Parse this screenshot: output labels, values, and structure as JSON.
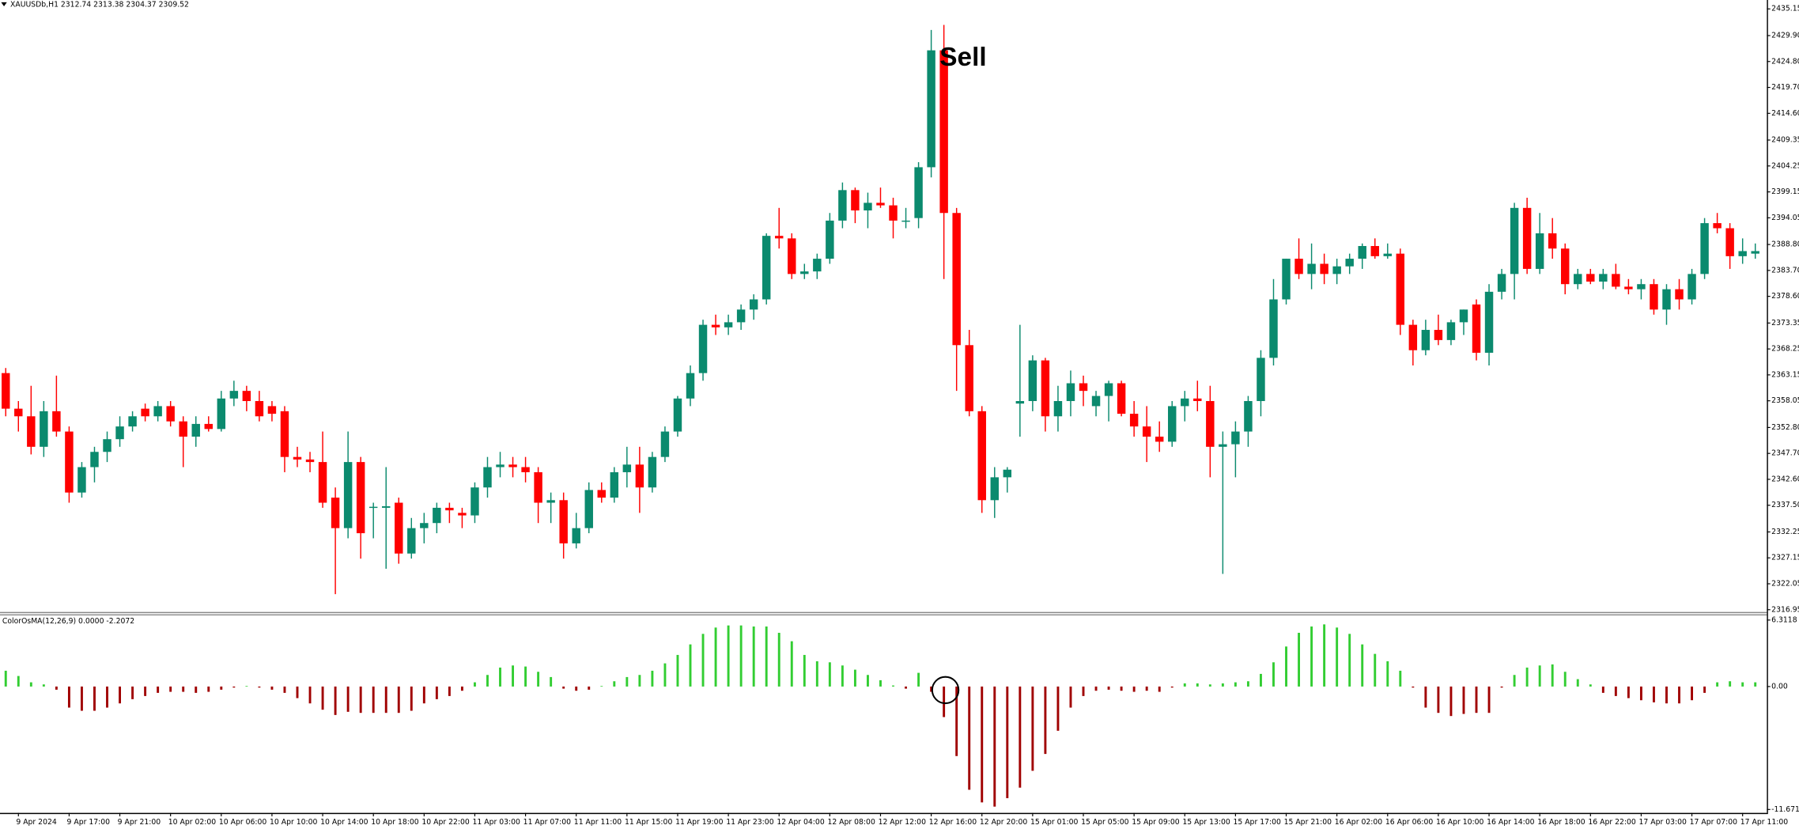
{
  "chart_data": [
    {
      "type": "candlestick",
      "title": "XAUUSDb,H1",
      "subtitle": "2312.74 2313.38 2304.37 2309.52",
      "annotation": "Sell",
      "categories": [
        null,
        "9 Apr 2024",
        null,
        null,
        null,
        "9 Apr 17:00",
        null,
        null,
        null,
        "9 Apr 21:00",
        null,
        null,
        null,
        "10 Apr 02:00",
        null,
        null,
        null,
        "10 Apr 06:00",
        null,
        null,
        null,
        "10 Apr 10:00",
        null,
        null,
        null,
        "10 Apr 14:00",
        null,
        null,
        null,
        "10 Apr 18:00",
        null,
        null,
        null,
        "10 Apr 22:00",
        null,
        null,
        null,
        "11 Apr 03:00",
        null,
        null,
        null,
        "11 Apr 07:00",
        null,
        null,
        null,
        "11 Apr 11:00",
        null,
        null,
        null,
        "11 Apr 15:00",
        null,
        null,
        null,
        "11 Apr 19:00",
        null,
        null,
        null,
        "11 Apr 23:00",
        null,
        null,
        null,
        "12 Apr 04:00",
        null,
        null,
        null,
        "12 Apr 08:00",
        null,
        null,
        null,
        "12 Apr 12:00",
        null,
        null,
        null,
        "12 Apr 16:00",
        null,
        null,
        null,
        "12 Apr 20:00",
        null,
        null,
        null,
        "15 Apr 01:00",
        null,
        null,
        null,
        "15 Apr 05:00",
        null,
        null,
        null,
        "15 Apr 09:00",
        null,
        null,
        null,
        "15 Apr 13:00",
        null,
        null,
        null,
        "15 Apr 17:00",
        null,
        null,
        null,
        "15 Apr 21:00",
        null,
        null,
        null,
        "16 Apr 02:00",
        null,
        null,
        null,
        "16 Apr 06:00",
        null,
        null,
        null,
        "16 Apr 10:00",
        null,
        null,
        null,
        "16 Apr 14:00",
        null,
        null,
        null,
        "16 Apr 18:00",
        null,
        null,
        null,
        "16 Apr 22:00",
        null,
        null,
        null,
        "17 Apr 03:00",
        null,
        null,
        null,
        "17 Apr 07:00",
        null,
        null,
        null,
        "17 Apr 11:00",
        null
      ],
      "open": [
        2363.5,
        2356.5,
        2355,
        2349,
        2356,
        2352,
        2340,
        2345,
        2348,
        2350.5,
        2353,
        2356.5,
        2355,
        2357,
        2354,
        2351,
        2353.5,
        2352.5,
        2358.5,
        2360,
        2358,
        2357,
        2356,
        2347,
        2346.5,
        2346,
        2339,
        2333,
        2346,
        2337,
        2337,
        2338,
        2328,
        2333,
        2334,
        2337,
        2336,
        2335.5,
        2341,
        2345,
        2345.5,
        2345,
        2344,
        2338,
        2338.5,
        2330,
        2333,
        2340.5,
        2339,
        2344,
        2345.5,
        2341,
        2347,
        2352,
        2358.5,
        2363.5,
        2373,
        2372.5,
        2373.5,
        2376,
        2378,
        2390.5,
        2390,
        2383,
        2383.5,
        2386,
        2393.5,
        2399.5,
        2395.5,
        2397,
        2396.5,
        2393.5,
        2394,
        2404,
        2427,
        2395,
        2369,
        2356,
        2338.5,
        2343,
        2357.5,
        2358,
        2366,
        2355,
        2358,
        2361.5,
        2357,
        2359,
        2361.5,
        2355.5,
        2353,
        2351,
        2350,
        2357,
        2358.5,
        2358,
        2349,
        2349.5,
        2352,
        2358,
        2366.5,
        2378,
        2386,
        2383,
        2385,
        2383,
        2384.5,
        2386,
        2388.5,
        2386.5,
        2387,
        2373,
        2368,
        2372,
        2370,
        2373.5,
        2377,
        2367.5,
        2379.5,
        2383,
        2396,
        2384,
        2391,
        2388,
        2381,
        2383,
        2381.5,
        2383,
        2380.5,
        2380,
        2381,
        2376,
        2380,
        2378,
        2383,
        2393,
        2392,
        2386.5,
        2387
      ],
      "high": [
        2364.5,
        2358,
        2361,
        2358,
        2363,
        2353,
        2346,
        2349,
        2352,
        2355,
        2356,
        2357.5,
        2358,
        2358,
        2355,
        2355,
        2355,
        2360,
        2362,
        2361,
        2360,
        2358,
        2357,
        2349,
        2348,
        2352,
        2341,
        2352,
        2347,
        2338,
        2345,
        2339,
        2335,
        2336,
        2338,
        2338,
        2337,
        2342,
        2347,
        2348,
        2347,
        2347,
        2345,
        2340,
        2340,
        2336,
        2342,
        2342,
        2345,
        2349,
        2349,
        2348,
        2353,
        2359,
        2365,
        2374,
        2375,
        2375,
        2377,
        2379,
        2391,
        2396,
        2391,
        2385,
        2387,
        2395,
        2401,
        2400,
        2399,
        2400,
        2398,
        2396,
        2405,
        2431,
        2432,
        2396,
        2372,
        2357,
        2345,
        2345,
        2373,
        2367,
        2366.5,
        2361,
        2364,
        2363,
        2360,
        2362,
        2362,
        2358,
        2357,
        2354,
        2358,
        2360,
        2362,
        2361,
        2352,
        2354,
        2359,
        2368,
        2382,
        2386,
        2390,
        2389,
        2387,
        2386,
        2387,
        2389,
        2390,
        2389,
        2388,
        2374,
        2374,
        2375,
        2374,
        2376,
        2378,
        2381,
        2384,
        2397,
        2398,
        2395,
        2394,
        2389,
        2384,
        2384,
        2384,
        2385,
        2382,
        2382,
        2382,
        2381,
        2382,
        2384,
        2394,
        2395,
        2393,
        2390,
        2389
      ],
      "low": [
        2355,
        2352,
        2347.5,
        2347,
        2351,
        2338,
        2339,
        2342,
        2346,
        2349,
        2352,
        2354,
        2354,
        2353,
        2345,
        2349,
        2352,
        2352,
        2357,
        2356,
        2354,
        2354,
        2344,
        2345,
        2344,
        2337,
        2320,
        2331,
        2327,
        2331,
        2325,
        2326,
        2327,
        2330,
        2332,
        2334,
        2333,
        2334,
        2339,
        2343,
        2343,
        2342,
        2334,
        2334,
        2327,
        2329,
        2332,
        2338,
        2338,
        2341,
        2336,
        2340,
        2346,
        2351,
        2357,
        2362,
        2371,
        2371,
        2372,
        2374,
        2377,
        2388,
        2382,
        2382,
        2382,
        2385,
        2392,
        2393,
        2392,
        2396,
        2390,
        2392,
        2392,
        2402,
        2382,
        2360,
        2355,
        2336,
        2335,
        2340,
        2351,
        2356,
        2352,
        2352,
        2355,
        2357,
        2355,
        2354,
        2355,
        2351,
        2346,
        2348,
        2349,
        2354,
        2356,
        2343,
        2324,
        2343,
        2349,
        2355,
        2365,
        2377,
        2382,
        2380,
        2381,
        2381,
        2383,
        2384,
        2386,
        2386,
        2371,
        2365,
        2367,
        2369,
        2369,
        2371,
        2366,
        2365,
        2378,
        2378,
        2383,
        2383,
        2386,
        2379,
        2380,
        2381,
        2380,
        2380,
        2379,
        2378,
        2375,
        2373,
        2376,
        2377,
        2382,
        2391,
        2384,
        2385,
        2386
      ],
      "close": [
        2356.5,
        2355,
        2349,
        2356,
        2352,
        2340,
        2345,
        2348,
        2350.5,
        2353,
        2355,
        2355,
        2357,
        2354,
        2351,
        2353.5,
        2352.5,
        2358.5,
        2360,
        2358,
        2355,
        2355.5,
        2347,
        2346.5,
        2346,
        2338,
        2333,
        2346,
        2332,
        2337.2,
        2337.3,
        2328,
        2333,
        2334,
        2337,
        2336.5,
        2335.5,
        2341,
        2345,
        2345.5,
        2345,
        2344,
        2338,
        2338.5,
        2330,
        2333,
        2340.5,
        2339,
        2344,
        2345.5,
        2341,
        2347,
        2352,
        2358.5,
        2363.5,
        2373,
        2372.5,
        2373.5,
        2376,
        2378,
        2390.5,
        2390,
        2383,
        2383.5,
        2386,
        2393.5,
        2399.5,
        2395.5,
        2397,
        2396.5,
        2393.5,
        2393.5,
        2404,
        2427,
        2395,
        2369,
        2356,
        2338.5,
        2343,
        2344.5,
        2358,
        2366,
        2355,
        2358,
        2361.5,
        2360,
        2359,
        2361.5,
        2355.5,
        2353,
        2351,
        2350,
        2357,
        2358.5,
        2358,
        2349,
        2349.5,
        2352,
        2358,
        2366.5,
        2378,
        2386,
        2383,
        2385,
        2383,
        2384.5,
        2386,
        2388.5,
        2386.5,
        2387,
        2373,
        2368,
        2372,
        2370,
        2373.5,
        2376,
        2367.5,
        2379.5,
        2383,
        2396,
        2384,
        2391,
        2388,
        2381,
        2383,
        2381.5,
        2383,
        2380.5,
        2380,
        2381,
        2376,
        2380,
        2378,
        2383,
        2393,
        2392,
        2386.5,
        2387.5,
        2387.5
      ],
      "up_color": "#0b8a6e",
      "down_color": "#ff0000",
      "ylim": [
        2316.5,
        2436.9
      ],
      "yticks": [
        {
          "value": 2435.15,
          "label": "2435.15"
        },
        {
          "value": 2429.9,
          "label": "2429.90"
        },
        {
          "value": 2424.8,
          "label": "2424.80"
        },
        {
          "value": 2419.7,
          "label": "2419.70"
        },
        {
          "value": 2414.6,
          "label": "2414.60"
        },
        {
          "value": 2409.35,
          "label": "2409.35"
        },
        {
          "value": 2404.25,
          "label": "2404.25"
        },
        {
          "value": 2399.15,
          "label": "2399.15"
        },
        {
          "value": 2394.05,
          "label": "2394.05"
        },
        {
          "value": 2388.8,
          "label": "2388.80"
        },
        {
          "value": 2383.7,
          "label": "2383.70"
        },
        {
          "value": 2378.6,
          "label": "2378.60"
        },
        {
          "value": 2373.35,
          "label": "2373.35"
        },
        {
          "value": 2368.25,
          "label": "2368.25"
        },
        {
          "value": 2363.15,
          "label": "2363.15"
        },
        {
          "value": 2358.05,
          "label": "2358.05"
        },
        {
          "value": 2352.8,
          "label": "2352.80"
        },
        {
          "value": 2347.7,
          "label": "2347.70"
        },
        {
          "value": 2342.6,
          "label": "2342.60"
        },
        {
          "value": 2337.5,
          "label": "2337.50"
        },
        {
          "value": 2332.25,
          "label": "2332.25"
        },
        {
          "value": 2327.15,
          "label": "2327.15"
        },
        {
          "value": 2322.05,
          "label": "2322.05"
        },
        {
          "value": 2316.95,
          "label": "2316.95"
        }
      ]
    },
    {
      "type": "bar",
      "title": "ColorOsMA(12,26,9) 0.0000 -2.2072",
      "values": [
        1.5,
        1.0,
        0.4,
        0.2,
        -0.3,
        -2.0,
        -2.3,
        -2.3,
        -2.0,
        -1.6,
        -1.2,
        -0.9,
        -0.6,
        -0.5,
        -0.5,
        -0.6,
        -0.5,
        -0.3,
        -0.1,
        0.05,
        -0.1,
        -0.3,
        -0.6,
        -1.1,
        -1.6,
        -2.2,
        -2.7,
        -2.4,
        -2.5,
        -2.5,
        -2.5,
        -2.5,
        -2.3,
        -1.6,
        -1.2,
        -0.9,
        -0.4,
        0.4,
        1.1,
        1.8,
        2.0,
        1.9,
        1.4,
        0.9,
        -0.2,
        -0.4,
        -0.3,
        0.05,
        0.5,
        0.9,
        1.1,
        1.5,
        2.2,
        3.0,
        4.0,
        5.0,
        5.6,
        5.8,
        5.8,
        5.7,
        5.7,
        5.1,
        4.3,
        3.0,
        2.4,
        2.3,
        2.0,
        1.6,
        1.1,
        0.6,
        0.1,
        -0.2,
        1.3,
        -0.5,
        -2.9,
        -6.6,
        -9.8,
        -11.0,
        -11.4,
        -10.6,
        -9.6,
        -8.0,
        -6.4,
        -4.2,
        -2.0,
        -0.9,
        -0.4,
        -0.3,
        -0.4,
        -0.5,
        -0.4,
        -0.5,
        -0.1,
        0.3,
        0.3,
        0.2,
        0.3,
        0.4,
        0.5,
        1.2,
        2.3,
        3.8,
        5.1,
        5.7,
        5.9,
        5.6,
        5.0,
        4.0,
        3.1,
        2.4,
        1.5,
        -0.1,
        -2.0,
        -2.5,
        -2.8,
        -2.6,
        -2.5,
        -2.5,
        -0.1,
        1.1,
        1.8,
        2.0,
        2.1,
        1.4,
        0.7,
        0.2,
        -0.6,
        -0.9,
        -1.1,
        -1.3,
        -1.5,
        -1.6,
        -1.6,
        -1.3,
        -0.6,
        0.4,
        0.5,
        0.4,
        0.4
      ],
      "positive_color": "#32cd32",
      "negative_color": "#a00000",
      "ylim": [
        -12.0,
        6.75
      ],
      "yticks": [
        6.3118,
        {
          "value": 0,
          "label": "0.00"
        },
        -11.6717
      ]
    }
  ]
}
